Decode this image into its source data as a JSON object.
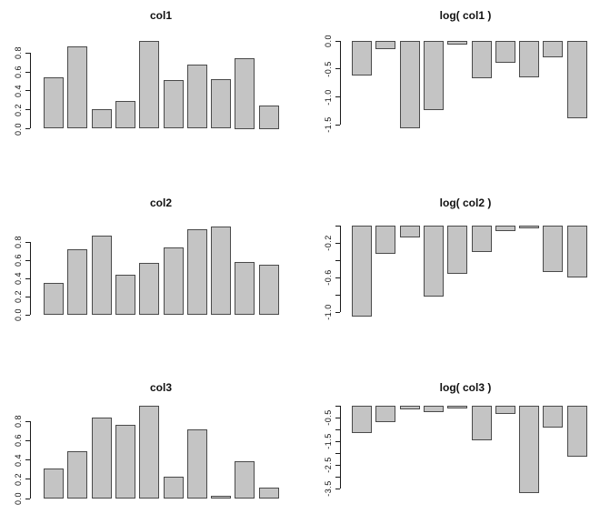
{
  "figure": {
    "background": "#ffffff",
    "bar_fill": "#c4c4c4",
    "bar_border": "#4a4a4a",
    "axis_color": "#1a1a1a",
    "text_color": "#111111",
    "layout": "3 rows x 2 columns of barplots, no x-axis labels, no gridlines, no legend"
  },
  "chart_data": [
    {
      "type": "bar",
      "title": "col1",
      "values": [
        0.54,
        0.87,
        0.21,
        0.29,
        0.93,
        0.51,
        0.68,
        0.52,
        0.75,
        0.25
      ],
      "ylim": [
        0,
        0.95
      ],
      "yticks": [
        0,
        0.2,
        0.4,
        0.6,
        0.8
      ],
      "ytick_labels": [
        "0.0",
        "0.2",
        "0.4",
        "0.6",
        "0.8"
      ],
      "xlabel": "",
      "ylabel": "",
      "grid": false
    },
    {
      "type": "bar",
      "title": "log( col1 )",
      "values": [
        -0.62,
        -0.14,
        -1.56,
        -1.24,
        -0.07,
        -0.67,
        -0.39,
        -0.65,
        -0.29,
        -1.39
      ],
      "ylim": [
        -1.6,
        0
      ],
      "yticks": [
        0,
        -0.5,
        -1.0,
        -1.5
      ],
      "ytick_labels": [
        "0.0",
        "-0.5",
        "-1.0",
        "-1.5"
      ],
      "xlabel": "",
      "ylabel": "",
      "grid": false
    },
    {
      "type": "bar",
      "title": "col2",
      "values": [
        0.35,
        0.72,
        0.87,
        0.44,
        0.57,
        0.74,
        0.94,
        0.97,
        0.58,
        0.55
      ],
      "ylim": [
        0,
        1.0
      ],
      "yticks": [
        0,
        0.2,
        0.4,
        0.6,
        0.8
      ],
      "ytick_labels": [
        "0.0",
        "0.2",
        "0.4",
        "0.6",
        "0.8"
      ],
      "xlabel": "",
      "ylabel": "",
      "grid": false
    },
    {
      "type": "bar",
      "title": "log( col2 )",
      "values": [
        -1.05,
        -0.33,
        -0.14,
        -0.82,
        -0.56,
        -0.3,
        -0.06,
        -0.03,
        -0.54,
        -0.6
      ],
      "ylim": [
        -1.1,
        0
      ],
      "yticks": [
        0,
        -0.2,
        -0.4,
        -0.6,
        -0.8,
        -1.0
      ],
      "ytick_labels": [
        "",
        "-0.2",
        "",
        "-0.6",
        "",
        "-1.0"
      ],
      "xlabel": "",
      "ylabel": "",
      "grid": false
    },
    {
      "type": "bar",
      "title": "col3",
      "values": [
        0.31,
        0.49,
        0.84,
        0.76,
        0.96,
        0.23,
        0.72,
        0.025,
        0.39,
        0.115
      ],
      "ylim": [
        0,
        1.0
      ],
      "yticks": [
        0,
        0.2,
        0.4,
        0.6,
        0.8
      ],
      "ytick_labels": [
        "0.0",
        "0.2",
        "0.4",
        "0.6",
        "0.8"
      ],
      "xlabel": "",
      "ylabel": "",
      "grid": false
    },
    {
      "type": "bar",
      "title": "log( col3 )",
      "values": [
        -1.17,
        -0.71,
        -0.17,
        -0.27,
        -0.04,
        -1.47,
        -0.33,
        -3.69,
        -0.94,
        -2.16
      ],
      "ylim": [
        -3.7,
        0
      ],
      "yticks": [
        0,
        -0.5,
        -1.0,
        -1.5,
        -2.0,
        -2.5,
        -3.0,
        -3.5
      ],
      "ytick_labels": [
        "",
        "-0.5",
        "",
        "-1.5",
        "",
        "-2.5",
        "",
        "-3.5"
      ],
      "xlabel": "",
      "ylabel": "",
      "grid": false
    }
  ]
}
